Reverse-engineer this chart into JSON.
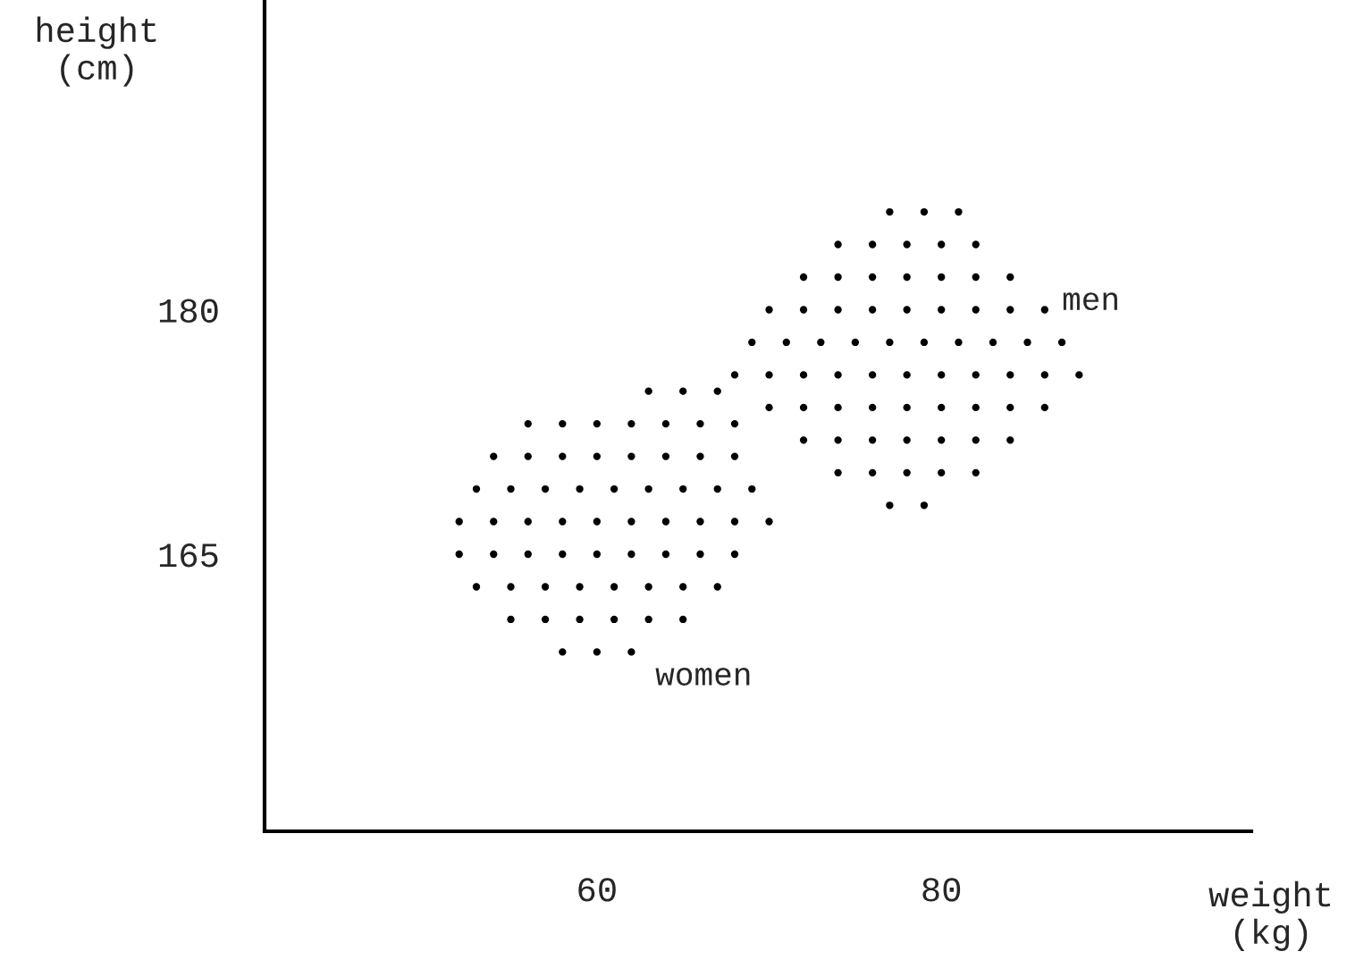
{
  "chart_data": {
    "type": "scatter",
    "xlabel": "weight\n(kg)",
    "ylabel": "height\n(cm)",
    "xlim": [
      40.7,
      98
    ],
    "ylim": [
      148,
      199
    ],
    "xticks": [
      60,
      80
    ],
    "yticks": [
      165,
      180
    ],
    "grid": false,
    "marker": "circle",
    "series": [
      {
        "name": "women",
        "color": "#000000",
        "x": [
          63,
          65,
          67,
          56,
          58,
          60,
          62,
          64,
          66,
          68,
          54,
          56,
          58,
          60,
          62,
          64,
          66,
          68,
          53,
          55,
          57,
          59,
          61,
          63,
          65,
          67,
          69,
          52,
          54,
          56,
          58,
          60,
          62,
          64,
          66,
          68,
          70,
          52,
          54,
          56,
          58,
          60,
          62,
          64,
          66,
          68,
          53,
          55,
          57,
          59,
          61,
          63,
          65,
          67,
          55,
          57,
          59,
          61,
          63,
          65,
          58,
          60,
          62
        ],
        "values": [
          175,
          175,
          175,
          173,
          173,
          173,
          173,
          173,
          173,
          173,
          171,
          171,
          171,
          171,
          171,
          171,
          171,
          171,
          169,
          169,
          169,
          169,
          169,
          169,
          169,
          169,
          169,
          167,
          167,
          167,
          167,
          167,
          167,
          167,
          167,
          167,
          167,
          165,
          165,
          165,
          165,
          165,
          165,
          165,
          165,
          165,
          163,
          163,
          163,
          163,
          163,
          163,
          163,
          163,
          161,
          161,
          161,
          161,
          161,
          161,
          159,
          159,
          159
        ]
      },
      {
        "name": "men",
        "color": "#000000",
        "x": [
          77,
          79,
          81,
          74,
          76,
          78,
          80,
          82,
          72,
          74,
          76,
          78,
          80,
          82,
          84,
          70,
          72,
          74,
          76,
          78,
          80,
          82,
          84,
          86,
          69,
          71,
          73,
          75,
          77,
          79,
          81,
          83,
          85,
          87,
          68,
          70,
          72,
          74,
          76,
          78,
          80,
          82,
          84,
          86,
          88,
          70,
          72,
          74,
          76,
          78,
          80,
          82,
          84,
          86,
          72,
          74,
          76,
          78,
          80,
          82,
          84,
          74,
          76,
          78,
          80,
          82,
          77,
          79
        ],
        "values": [
          186,
          186,
          186,
          184,
          184,
          184,
          184,
          184,
          182,
          182,
          182,
          182,
          182,
          182,
          182,
          180,
          180,
          180,
          180,
          180,
          180,
          180,
          180,
          180,
          178,
          178,
          178,
          178,
          178,
          178,
          178,
          178,
          178,
          178,
          176,
          176,
          176,
          176,
          176,
          176,
          176,
          176,
          176,
          176,
          176,
          174,
          174,
          174,
          174,
          174,
          174,
          174,
          174,
          174,
          172,
          172,
          172,
          172,
          172,
          172,
          172,
          170,
          170,
          170,
          170,
          170,
          168,
          168
        ]
      }
    ]
  }
}
